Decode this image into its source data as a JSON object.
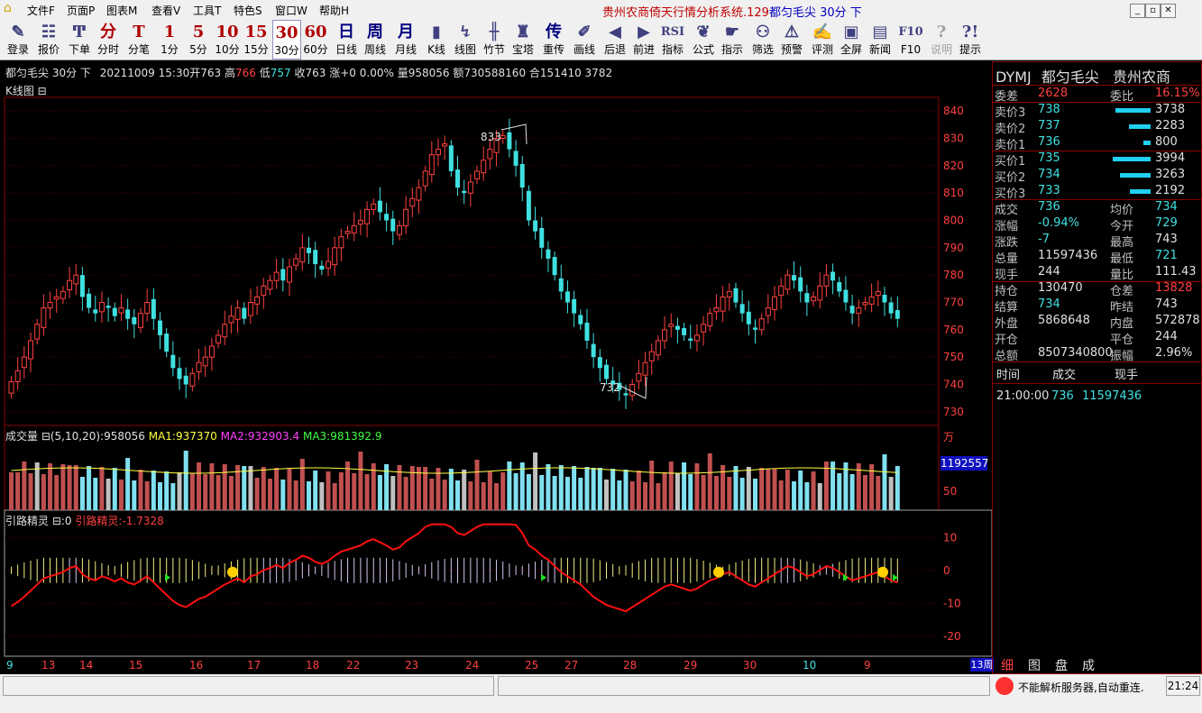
{
  "menu": {
    "items": [
      "文件F",
      "页面P",
      "图表M",
      "查看V",
      "工具T",
      "特色S",
      "窗口W",
      "帮助H"
    ],
    "title_red": "贵州农商倚天行情分析系统.129",
    "title_blue": "都匀毛尖 30分 下"
  },
  "toolbar": [
    {
      "icon": "✎",
      "label": "登录",
      "name": "login"
    },
    {
      "icon": "☷",
      "label": "报价",
      "name": "quote"
    },
    {
      "icon": "Ͳ",
      "label": "下单",
      "name": "order"
    },
    {
      "icon": "分",
      "label": "分时",
      "name": "timeshare"
    },
    {
      "icon": "T",
      "label": "分笔",
      "name": "tick"
    },
    {
      "icon": "1",
      "label": "1分",
      "name": "1min"
    },
    {
      "icon": "5",
      "label": "5分",
      "name": "5min"
    },
    {
      "icon": "10",
      "label": "10分",
      "name": "10min"
    },
    {
      "icon": "15",
      "label": "15分",
      "name": "15min"
    },
    {
      "icon": "30",
      "label": "30分",
      "name": "30min"
    },
    {
      "icon": "60",
      "label": "60分",
      "name": "60min"
    },
    {
      "icon": "日",
      "label": "日线",
      "name": "daily"
    },
    {
      "icon": "周",
      "label": "周线",
      "name": "weekly"
    },
    {
      "icon": "月",
      "label": "月线",
      "name": "monthly"
    },
    {
      "icon": "▮",
      "label": "K线",
      "name": "kline"
    },
    {
      "icon": "↯",
      "label": "线图",
      "name": "linechart"
    },
    {
      "icon": "╫",
      "label": "竹节",
      "name": "bamboo"
    },
    {
      "icon": "♜",
      "label": "宝塔",
      "name": "tower"
    },
    {
      "icon": "传",
      "label": "重传",
      "name": "retransmit"
    },
    {
      "icon": "✐",
      "label": "画线",
      "name": "draw"
    },
    {
      "icon": "◀",
      "label": "后退",
      "name": "back"
    },
    {
      "icon": "▶",
      "label": "前进",
      "name": "forward"
    },
    {
      "icon": "RSI",
      "label": "指标",
      "name": "indicator"
    },
    {
      "icon": "❦",
      "label": "公式",
      "name": "formula"
    },
    {
      "icon": "☛",
      "label": "指示",
      "name": "hint"
    },
    {
      "icon": "⚇",
      "label": "筛选",
      "name": "filter"
    },
    {
      "icon": "⚠",
      "label": "预警",
      "name": "alert"
    },
    {
      "icon": "✍",
      "label": "评测",
      "name": "evaluate"
    },
    {
      "icon": "▣",
      "label": "全屏",
      "name": "fullscreen"
    },
    {
      "icon": "▤",
      "label": "新闻",
      "name": "news"
    },
    {
      "icon": "F10",
      "label": "F10",
      "name": "f10"
    },
    {
      "icon": "?",
      "label": "说明",
      "name": "explain"
    },
    {
      "icon": "?!",
      "label": "提示",
      "name": "tips"
    }
  ],
  "infoline": {
    "name": "都匀毛尖 30分 下",
    "time": "20211009 15:30",
    "open_label": "开",
    "open": "763",
    "high_label": "高",
    "high": "766",
    "low_label": "低",
    "low": "757",
    "close_label": "收",
    "close": "763",
    "change_label": "涨",
    "change": "+0 0.00%",
    "vol_label": "量",
    "vol": "958056",
    "amt_label": "额",
    "amt": "730588160",
    "oi_label": "合",
    "oi": "151410 3782"
  },
  "kline": {
    "title": "K线图 ⊟",
    "yticks": [
      "840",
      "830",
      "820",
      "810",
      "800",
      "790",
      "780",
      "770",
      "760",
      "750",
      "740",
      "730"
    ],
    "high_mark": "833",
    "low_mark": "732"
  },
  "volume": {
    "title": "成交量 ⊟(5,10,20)",
    "value": ":958056",
    "ma1_label": "MA1:",
    "ma1": "937370",
    "ma2_label": "MA2:",
    "ma2": "932903.4",
    "ma3_label": "MA3:",
    "ma3": "981392.9",
    "unit": "万",
    "current": "1192557",
    "tick50": "50"
  },
  "indicator": {
    "title": "引路精灵 ⊟:0",
    "value_label": "引路精灵:",
    "value": "-1.7328",
    "yticks": [
      "10",
      "0",
      "-10",
      "-20"
    ]
  },
  "xaxis": {
    "labels": [
      "9",
      "13",
      "14",
      "15",
      "16",
      "17",
      "18",
      "22",
      "23",
      "24",
      "25",
      "27",
      "28",
      "29",
      "30",
      "10",
      "9"
    ],
    "label_colors": [
      "#40e0e0",
      "#ff4040",
      "#ff4040",
      "#ff4040",
      "#ff4040",
      "#ff4040",
      "#ff4040",
      "#ff4040",
      "#ff4040",
      "#ff4040",
      "#ff4040",
      "#ff4040",
      "#ff4040",
      "#ff4040",
      "#ff4040",
      "#40e0e0",
      "#ff4040"
    ],
    "period": "13周"
  },
  "quote": {
    "code": "DYMJ",
    "name": "都匀毛尖",
    "exchange": "贵州农商",
    "weicha_label": "委差",
    "weicha": "2628",
    "weibi_label": "委比",
    "weibi": "16.15%",
    "asks": [
      {
        "label": "卖价3",
        "price": "738",
        "vol": "3738",
        "bar": 0.93
      },
      {
        "label": "卖价2",
        "price": "737",
        "vol": "2283",
        "bar": 0.57
      },
      {
        "label": "卖价1",
        "price": "736",
        "vol": "800",
        "bar": 0.2
      }
    ],
    "bids": [
      {
        "label": "买价1",
        "price": "735",
        "vol": "3994",
        "bar": 1.0
      },
      {
        "label": "买价2",
        "price": "734",
        "vol": "3263",
        "bar": 0.82
      },
      {
        "label": "买价3",
        "price": "733",
        "vol": "2192",
        "bar": 0.55
      }
    ],
    "stats": [
      {
        "l1": "成交",
        "v1": "736",
        "c1": "cyan",
        "l2": "均价",
        "v2": "734",
        "c2": "cyan"
      },
      {
        "l1": "涨幅",
        "v1": "-0.94%",
        "c1": "cyan",
        "l2": "今开",
        "v2": "729",
        "c2": "cyan"
      },
      {
        "l1": "涨跌",
        "v1": "-7",
        "c1": "cyan",
        "l2": "最高",
        "v2": "743",
        "c2": "white"
      },
      {
        "l1": "总量",
        "v1": "11597436",
        "c1": "white",
        "l2": "最低",
        "v2": "721",
        "c2": "cyan"
      },
      {
        "l1": "现手",
        "v1": "244",
        "c1": "white",
        "l2": "量比",
        "v2": "111.43",
        "c2": "white"
      },
      {
        "l1": "持仓",
        "v1": "130470",
        "c1": "white",
        "l2": "仓差",
        "v2": "13828",
        "c2": "red"
      },
      {
        "l1": "结算",
        "v1": "734",
        "c1": "cyan",
        "l2": "昨结",
        "v2": "743",
        "c2": "white"
      },
      {
        "l1": "外盘",
        "v1": "5868648",
        "c1": "white",
        "l2": "内盘",
        "v2": "572878",
        "c2": "white"
      },
      {
        "l1": "开仓",
        "v1": "",
        "c1": "white",
        "l2": "平仓",
        "v2": "244",
        "c2": "white"
      },
      {
        "l1": "总额",
        "v1": "8507340800",
        "c1": "white",
        "l2": "振幅",
        "v2": "2.96%",
        "c2": "white"
      }
    ],
    "ticks_header": {
      "time": "时间",
      "price": "成交",
      "vol": "现手"
    },
    "ticks": [
      {
        "time": "21:00:00",
        "price": "736",
        "vol": "11597436"
      }
    ],
    "tabs": [
      "细",
      "图",
      "盘",
      "成"
    ]
  },
  "status": {
    "message": "不能解析服务器,自动重连.",
    "time": "21:24"
  },
  "colors": {
    "up": "#ff4040",
    "down": "#40e0e0",
    "border": "#8b0000"
  },
  "chart_data": {
    "type": "candlestick",
    "series_close": [
      741,
      745,
      750,
      756,
      762,
      768,
      770,
      772,
      774,
      778,
      780,
      772,
      768,
      766,
      770,
      768,
      765,
      768,
      764,
      762,
      766,
      770,
      764,
      758,
      752,
      746,
      742,
      740,
      744,
      748,
      750,
      754,
      758,
      762,
      765,
      768,
      764,
      770,
      772,
      776,
      778,
      781,
      778,
      783,
      786,
      790,
      788,
      784,
      782,
      785,
      790,
      794,
      796,
      798,
      800,
      804,
      806,
      803,
      800,
      796,
      798,
      804,
      808,
      812,
      818,
      824,
      826,
      828,
      818,
      812,
      810,
      814,
      818,
      822,
      826,
      830,
      831,
      826,
      820,
      812,
      800,
      796,
      790,
      786,
      780,
      774,
      770,
      766,
      762,
      756,
      750,
      746,
      742,
      740,
      738,
      736,
      740,
      744,
      748,
      752,
      756,
      760,
      762,
      760,
      758,
      756,
      758,
      762,
      766,
      768,
      772,
      774,
      770,
      766,
      762,
      760,
      764,
      768,
      772,
      776,
      780,
      778,
      774,
      770,
      772,
      776,
      780,
      778,
      774,
      770,
      766,
      768,
      770,
      772,
      774,
      770,
      766,
      764
    ],
    "ylim": [
      725,
      845
    ],
    "osc_ylim": [
      -25,
      15
    ]
  }
}
